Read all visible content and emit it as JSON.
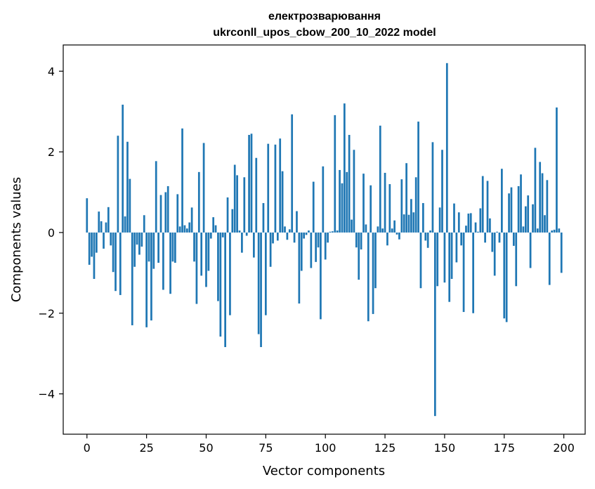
{
  "chart_data": {
    "type": "bar",
    "title": "електрозварювання",
    "subtitle": "ukrconll_upos_cbow_200_10_2022 model",
    "xlabel": "Vector components",
    "ylabel": "Components values",
    "xlim": [
      -9.95,
      208.95
    ],
    "ylim": [
      -5.0,
      4.65
    ],
    "xticks": [
      0,
      25,
      50,
      75,
      100,
      125,
      150,
      175,
      200
    ],
    "xtick_labels": [
      "0",
      "25",
      "50",
      "75",
      "100",
      "125",
      "150",
      "175",
      "200"
    ],
    "yticks": [
      -4,
      -2,
      0,
      2,
      4
    ],
    "ytick_labels": [
      "−4",
      "−2",
      "0",
      "2",
      "4"
    ],
    "grid": false,
    "bar_color": "#1f77b4",
    "x": [
      0,
      1,
      2,
      3,
      4,
      5,
      6,
      7,
      8,
      9,
      10,
      11,
      12,
      13,
      14,
      15,
      16,
      17,
      18,
      19,
      20,
      21,
      22,
      23,
      24,
      25,
      26,
      27,
      28,
      29,
      30,
      31,
      32,
      33,
      34,
      35,
      36,
      37,
      38,
      39,
      40,
      41,
      42,
      43,
      44,
      45,
      46,
      47,
      48,
      49,
      50,
      51,
      52,
      53,
      54,
      55,
      56,
      57,
      58,
      59,
      60,
      61,
      62,
      63,
      64,
      65,
      66,
      67,
      68,
      69,
      70,
      71,
      72,
      73,
      74,
      75,
      76,
      77,
      78,
      79,
      80,
      81,
      82,
      83,
      84,
      85,
      86,
      87,
      88,
      89,
      90,
      91,
      92,
      93,
      94,
      95,
      96,
      97,
      98,
      99,
      100,
      101,
      102,
      103,
      104,
      105,
      106,
      107,
      108,
      109,
      110,
      111,
      112,
      113,
      114,
      115,
      116,
      117,
      118,
      119,
      120,
      121,
      122,
      123,
      124,
      125,
      126,
      127,
      128,
      129,
      130,
      131,
      132,
      133,
      134,
      135,
      136,
      137,
      138,
      139,
      140,
      141,
      142,
      143,
      144,
      145,
      146,
      147,
      148,
      149,
      150,
      151,
      152,
      153,
      154,
      155,
      156,
      157,
      158,
      159,
      160,
      161,
      162,
      163,
      164,
      165,
      166,
      167,
      168,
      169,
      170,
      171,
      172,
      173,
      174,
      175,
      176,
      177,
      178,
      179,
      180,
      181,
      182,
      183,
      184,
      185,
      186,
      187,
      188,
      189,
      190,
      191,
      192,
      193,
      194,
      195,
      196,
      197,
      198,
      199
    ],
    "values": [
      0.85,
      -0.8,
      -0.6,
      -1.15,
      -0.5,
      0.52,
      0.28,
      -0.4,
      0.25,
      0.63,
      -0.32,
      -0.98,
      -1.45,
      2.4,
      -1.55,
      3.17,
      0.4,
      2.25,
      1.33,
      -2.3,
      -0.85,
      -0.3,
      -0.55,
      -0.35,
      0.43,
      -2.35,
      -0.72,
      -2.18,
      -0.9,
      1.77,
      -0.75,
      0.93,
      -1.42,
      1.0,
      1.15,
      -1.52,
      -0.72,
      -0.75,
      0.95,
      0.15,
      2.58,
      0.18,
      0.1,
      0.25,
      0.62,
      -0.72,
      -1.77,
      1.5,
      -1.07,
      2.22,
      -1.35,
      -0.95,
      -0.15,
      0.38,
      0.18,
      -1.7,
      -2.58,
      -0.12,
      -2.84,
      0.87,
      -2.05,
      0.58,
      1.68,
      1.42,
      0.05,
      -0.5,
      1.37,
      -0.08,
      2.42,
      2.45,
      -0.62,
      1.85,
      -2.52,
      -2.84,
      0.73,
      -2.05,
      2.2,
      -0.85,
      -0.27,
      2.18,
      -0.2,
      2.33,
      1.52,
      0.15,
      -0.18,
      0.08,
      2.93,
      -0.25,
      0.53,
      -1.76,
      -0.95,
      -0.15,
      -0.06,
      0.05,
      -0.88,
      1.26,
      -0.73,
      -0.37,
      -2.15,
      1.64,
      -0.67,
      -0.25,
      0.02,
      0.03,
      2.91,
      0.05,
      1.55,
      1.22,
      3.2,
      1.5,
      2.42,
      0.32,
      2.05,
      -0.37,
      -1.17,
      -0.42,
      1.46,
      0.2,
      -2.2,
      1.17,
      -2.02,
      -1.38,
      0.15,
      2.65,
      0.1,
      1.48,
      -0.32,
      1.2,
      0.1,
      0.3,
      -0.05,
      -0.17,
      1.32,
      0.45,
      1.72,
      0.44,
      0.83,
      0.5,
      1.37,
      2.75,
      -1.38,
      0.73,
      -0.2,
      -0.38,
      0.05,
      2.24,
      -4.55,
      -1.33,
      0.62,
      2.05,
      -1.24,
      4.2,
      -1.72,
      -1.15,
      0.72,
      -0.74,
      0.5,
      -0.32,
      -1.97,
      0.17,
      0.47,
      0.48,
      -2.0,
      0.25,
      0.02,
      0.6,
      1.4,
      -0.25,
      1.28,
      0.35,
      -0.48,
      -1.07,
      0.02,
      -0.25,
      1.58,
      -2.13,
      -2.22,
      0.97,
      1.12,
      -0.33,
      -1.33,
      1.15,
      1.44,
      0.15,
      0.65,
      0.92,
      -0.88,
      0.7,
      2.1,
      0.1,
      1.75,
      1.47,
      0.43,
      1.3,
      -1.3,
      0.05,
      0.07,
      3.1,
      0.1,
      -1.0
    ]
  }
}
